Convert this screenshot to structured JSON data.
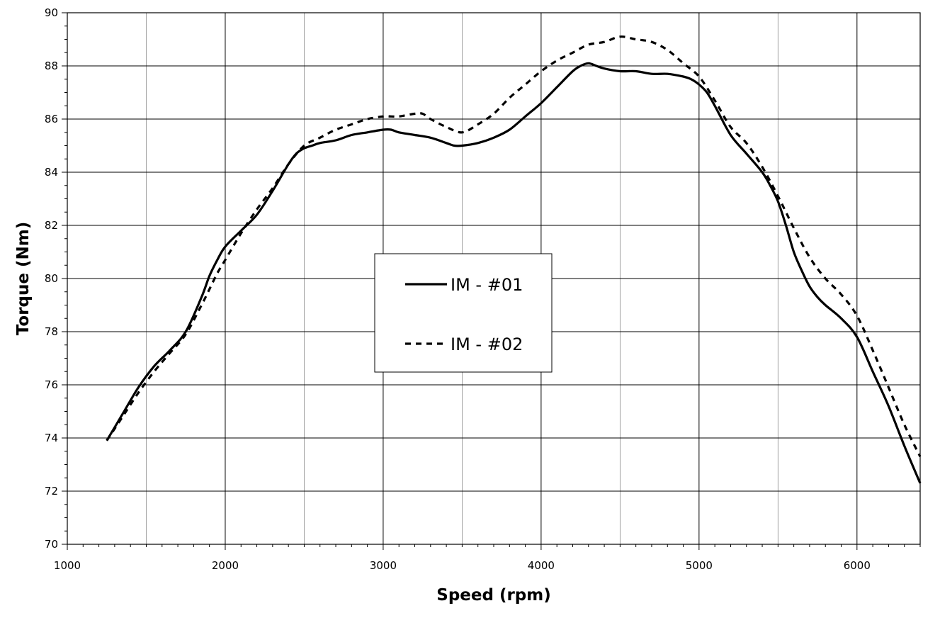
{
  "chart_data": {
    "type": "line",
    "title": "",
    "xlabel": "Speed (rpm)",
    "ylabel": "Torque (Nm)",
    "xlim": [
      1000,
      6400
    ],
    "ylim": [
      70,
      90
    ],
    "x_ticks": [
      1000,
      2000,
      3000,
      4000,
      5000,
      6000
    ],
    "y_ticks": [
      70,
      72,
      74,
      76,
      78,
      80,
      82,
      84,
      86,
      88,
      90
    ],
    "grid": true,
    "legend": {
      "placement": "center"
    },
    "series": [
      {
        "name": "IM - #01",
        "style": "solid",
        "color": "#000000",
        "x": [
          1250,
          1350,
          1450,
          1550,
          1650,
          1750,
          1850,
          1900,
          1950,
          2000,
          2100,
          2200,
          2300,
          2400,
          2450,
          2500,
          2550,
          2600,
          2700,
          2800,
          2900,
          3000,
          3050,
          3100,
          3200,
          3300,
          3400,
          3450,
          3500,
          3600,
          3700,
          3800,
          3900,
          4000,
          4100,
          4200,
          4250,
          4300,
          4350,
          4400,
          4500,
          4600,
          4700,
          4800,
          4900,
          4950,
          5000,
          5050,
          5100,
          5200,
          5300,
          5400,
          5450,
          5500,
          5550,
          5600,
          5650,
          5700,
          5750,
          5800,
          5900,
          6000,
          6100,
          6200,
          6300,
          6400
        ],
        "y": [
          73.9,
          74.9,
          75.9,
          76.7,
          77.3,
          78.0,
          79.3,
          80.1,
          80.7,
          81.2,
          81.8,
          82.4,
          83.3,
          84.3,
          84.7,
          84.9,
          85.0,
          85.1,
          85.2,
          85.4,
          85.5,
          85.6,
          85.6,
          85.5,
          85.4,
          85.3,
          85.1,
          85.0,
          85.0,
          85.1,
          85.3,
          85.6,
          86.1,
          86.6,
          87.2,
          87.8,
          88.0,
          88.1,
          88.0,
          87.9,
          87.8,
          87.8,
          87.7,
          87.7,
          87.6,
          87.5,
          87.3,
          87.0,
          86.5,
          85.4,
          84.7,
          84.0,
          83.5,
          82.9,
          82.0,
          81.0,
          80.3,
          79.7,
          79.3,
          79.0,
          78.5,
          77.8,
          76.5,
          75.2,
          73.7,
          72.3
        ]
      },
      {
        "name": "IM - #02",
        "style": "dashed",
        "color": "#000000",
        "x": [
          1250,
          1350,
          1450,
          1550,
          1650,
          1750,
          1850,
          1900,
          1950,
          2000,
          2100,
          2200,
          2300,
          2400,
          2500,
          2600,
          2700,
          2800,
          2900,
          3000,
          3050,
          3100,
          3200,
          3250,
          3300,
          3400,
          3500,
          3600,
          3700,
          3800,
          3900,
          4000,
          4100,
          4200,
          4300,
          4400,
          4500,
          4600,
          4700,
          4800,
          4900,
          5000,
          5100,
          5200,
          5300,
          5400,
          5500,
          5600,
          5700,
          5800,
          5900,
          6000,
          6100,
          6200,
          6300,
          6400
        ],
        "y": [
          73.9,
          74.8,
          75.7,
          76.5,
          77.2,
          77.9,
          79.0,
          79.6,
          80.2,
          80.7,
          81.7,
          82.6,
          83.4,
          84.3,
          85.0,
          85.3,
          85.6,
          85.8,
          86.0,
          86.1,
          86.1,
          86.1,
          86.2,
          86.2,
          86.0,
          85.7,
          85.5,
          85.8,
          86.2,
          86.8,
          87.3,
          87.8,
          88.2,
          88.5,
          88.8,
          88.9,
          89.1,
          89.0,
          88.9,
          88.6,
          88.1,
          87.6,
          86.7,
          85.7,
          85.1,
          84.2,
          83.1,
          81.9,
          80.8,
          80.0,
          79.4,
          78.6,
          77.3,
          75.9,
          74.5,
          73.3
        ]
      }
    ]
  }
}
